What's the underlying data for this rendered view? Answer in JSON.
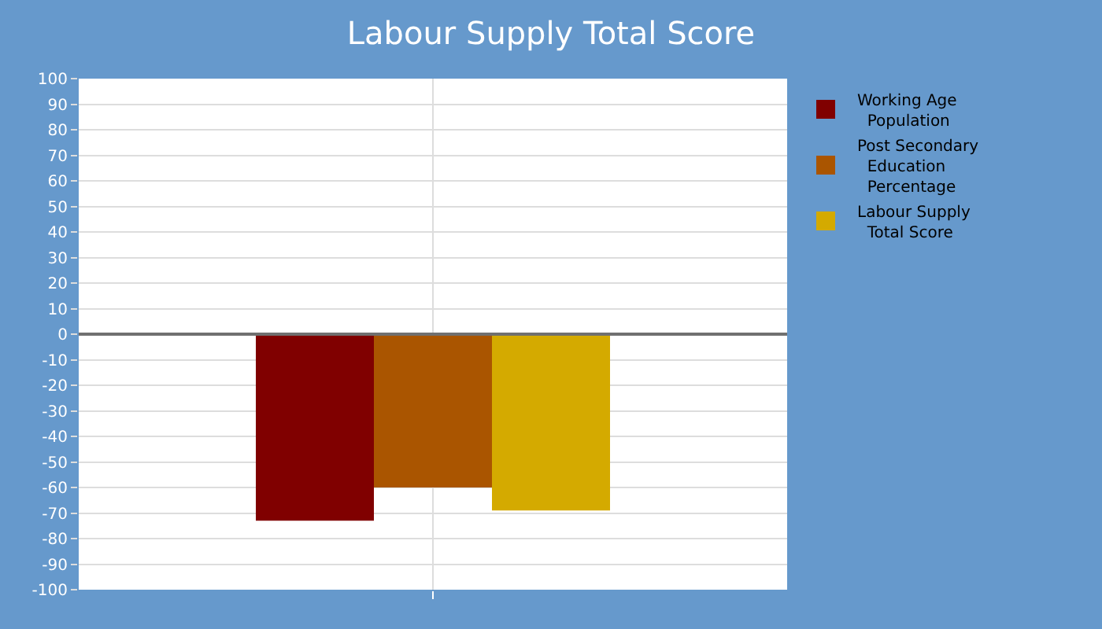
{
  "chart_data": {
    "type": "bar",
    "title": "Labour Supply Total Score",
    "categories": [
      null
    ],
    "series": [
      {
        "name": "Working Age Population",
        "color": "#800000",
        "values": [
          -73
        ]
      },
      {
        "name": "Post Secondary Education Percentage",
        "color": "#aa5500",
        "values": [
          -60
        ]
      },
      {
        "name": "Labour Supply Total Score",
        "color": "#d4aa00",
        "values": [
          -69
        ]
      }
    ],
    "ylim": [
      -100,
      100
    ],
    "yticks": [
      -100,
      -90,
      -80,
      -70,
      -60,
      -50,
      -40,
      -30,
      -20,
      -10,
      0,
      10,
      20,
      30,
      40,
      50,
      60,
      70,
      80,
      90,
      100
    ],
    "grid": true,
    "legend": "top right",
    "ref_lines": [
      {
        "axis": "y",
        "value": 0,
        "color": "#707070"
      }
    ]
  }
}
